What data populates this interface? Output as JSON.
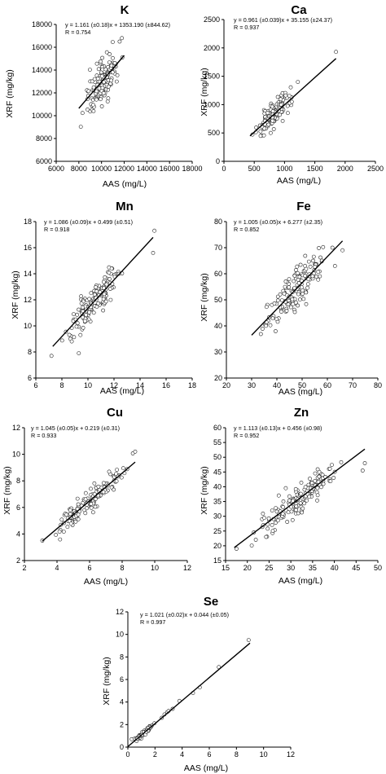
{
  "chart_data": [
    {
      "type": "scatter",
      "title": "K",
      "xlabel": "AAS (mg/L)",
      "ylabel": "XRF (mg/kg)",
      "xlim": [
        6000,
        18000
      ],
      "ylim": [
        6000,
        18000
      ],
      "xticks": [
        "6000",
        "8000",
        "10000",
        "12000",
        "14000",
        "16000",
        "18000"
      ],
      "yticks": [
        "6000",
        "8000",
        "10000",
        "12000",
        "14000",
        "16000",
        "18000"
      ],
      "equation": "y = 1.161 (±0.18)x + 1353.190 (±844.62)",
      "r_text": "R = 0.754",
      "fit": {
        "slope": 1.161,
        "intercept": 1353.19,
        "x_range": [
          8000,
          12000
        ]
      },
      "points": {
        "count": 150,
        "x_range": [
          8000,
          12000
        ],
        "residual_sd": 950,
        "seed": 11
      },
      "outliers": [
        [
          11800,
          16800
        ],
        [
          11600,
          16500
        ],
        [
          9300,
          10400
        ]
      ],
      "grid": false,
      "legend": "none"
    },
    {
      "type": "scatter",
      "title": "Ca",
      "xlabel": "AAS (mg/L)",
      "ylabel": "XRF (mg/kg)",
      "xlim": [
        0,
        2500
      ],
      "ylim": [
        0,
        2500
      ],
      "xticks": [
        "0",
        "500",
        "1000",
        "1500",
        "2000",
        "2500"
      ],
      "yticks": [
        "0",
        "500",
        "1000",
        "1500",
        "2000",
        "2500"
      ],
      "equation": "y = 0.961 (±0.039)x + 35.155 (±24.37)",
      "r_text": "R = 0.937",
      "fit": {
        "slope": 0.961,
        "intercept": 35.155,
        "x_range": [
          430,
          1850
        ]
      },
      "points": {
        "count": 150,
        "x_range": [
          430,
          1220
        ],
        "residual_sd": 95,
        "seed": 23
      },
      "outliers": [
        [
          1850,
          1930
        ],
        [
          1220,
          1400
        ]
      ],
      "grid": false,
      "legend": "none"
    },
    {
      "type": "scatter",
      "title": "Mn",
      "xlabel": "AAS (mg/L)",
      "ylabel": "XRF (mg/kg)",
      "xlim": [
        6,
        18
      ],
      "ylim": [
        6,
        18
      ],
      "xticks": [
        "6",
        "8",
        "10",
        "12",
        "14",
        "16",
        "18"
      ],
      "yticks": [
        "6",
        "8",
        "10",
        "12",
        "14",
        "16",
        "18"
      ],
      "equation": "y = 1.086 (±0.09)x + 0.499 (±0.51)",
      "r_text": "R = 0.918",
      "fit": {
        "slope": 1.086,
        "intercept": 0.499,
        "x_range": [
          7.3,
          15
        ]
      },
      "points": {
        "count": 150,
        "x_range": [
          7.5,
          13.2
        ],
        "residual_sd": 0.6,
        "seed": 37
      },
      "outliers": [
        [
          15.1,
          17.3
        ],
        [
          15,
          15.6
        ],
        [
          7.2,
          7.7
        ],
        [
          9.3,
          7.9
        ]
      ],
      "grid": false,
      "legend": "none"
    },
    {
      "type": "scatter",
      "title": "Fe",
      "xlabel": "AAS (mg/L)",
      "ylabel": "XRF (mg/kg)",
      "xlim": [
        20,
        80
      ],
      "ylim": [
        20,
        80
      ],
      "xticks": [
        "20",
        "30",
        "40",
        "50",
        "60",
        "70",
        "80"
      ],
      "yticks": [
        "20",
        "30",
        "40",
        "50",
        "60",
        "70",
        "80"
      ],
      "equation": "y = 1.005 (±0.05)x + 6.277 (±2.35)",
      "r_text": "R = 0.852",
      "fit": {
        "slope": 1.005,
        "intercept": 6.277,
        "x_range": [
          30,
          66
        ]
      },
      "points": {
        "count": 150,
        "x_range": [
          30,
          65
        ],
        "residual_sd": 4.2,
        "seed": 53
      },
      "outliers": [
        [
          62,
          70
        ],
        [
          66,
          69
        ],
        [
          63,
          63
        ]
      ],
      "grid": false,
      "legend": "none"
    },
    {
      "type": "scatter",
      "title": "Cu",
      "xlabel": "AAS (mg/L)",
      "ylabel": "XRF (mg/kg)",
      "xlim": [
        2,
        12
      ],
      "ylim": [
        2,
        12
      ],
      "xticks": [
        "2",
        "4",
        "6",
        "8",
        "10",
        "12"
      ],
      "yticks": [
        "2",
        "4",
        "6",
        "8",
        "10",
        "12"
      ],
      "equation": "y = 1.045 (±0.05)x + 0.219 (±0.31)",
      "r_text": "R = 0.933",
      "fit": {
        "slope": 1.045,
        "intercept": 0.219,
        "x_range": [
          3.1,
          8.8
        ]
      },
      "points": {
        "count": 150,
        "x_range": [
          3.3,
          8.8
        ],
        "residual_sd": 0.45,
        "seed": 71
      },
      "outliers": [
        [
          8.8,
          10.2
        ],
        [
          3.1,
          3.5
        ]
      ],
      "grid": false,
      "legend": "none"
    },
    {
      "type": "scatter",
      "title": "Zn",
      "xlabel": "AAS (mg/L)",
      "ylabel": "XRF (mg/kg)",
      "xlim": [
        15,
        50
      ],
      "ylim": [
        15,
        60
      ],
      "xticks": [
        "15",
        "20",
        "25",
        "30",
        "35",
        "40",
        "45",
        "50"
      ],
      "yticks": [
        "15",
        "20",
        "25",
        "30",
        "35",
        "40",
        "45",
        "50",
        "55",
        "60"
      ],
      "equation": "y = 1.113 (±0.13)x + 0.456 (±0.98)",
      "r_text": "R = 0.952",
      "fit": {
        "slope": 1.113,
        "intercept": 0.456,
        "x_range": [
          17,
          47
        ]
      },
      "points": {
        "count": 150,
        "x_range": [
          18,
          46
        ],
        "residual_sd": 2.3,
        "seed": 89
      },
      "outliers": [
        [
          17.5,
          19
        ],
        [
          46.5,
          45.5
        ],
        [
          47,
          48
        ]
      ],
      "grid": false,
      "legend": "none"
    },
    {
      "type": "scatter",
      "title": "Se",
      "xlabel": "AAS (mg/L)",
      "ylabel": "XRF (mg/kg)",
      "xlim": [
        0,
        12
      ],
      "ylim": [
        0,
        12
      ],
      "xticks": [
        "0",
        "2",
        "4",
        "6",
        "8",
        "10",
        "12"
      ],
      "yticks": [
        "0",
        "2",
        "4",
        "6",
        "8",
        "10",
        "12"
      ],
      "equation": "y = 1.021 (±0.02)x + 0.044 (±0.05)",
      "r_text": "R = 0.997",
      "fit": {
        "slope": 1.021,
        "intercept": 0.044,
        "x_range": [
          0,
          9
        ]
      },
      "points": {
        "count": 70,
        "x_range": [
          0.1,
          2.2
        ],
        "residual_sd": 0.12,
        "seed": 97
      },
      "outliers": [
        [
          2.5,
          2.6
        ],
        [
          2.9,
          3.1
        ],
        [
          3.3,
          3.4
        ],
        [
          3.8,
          4.1
        ],
        [
          4.8,
          4.8
        ],
        [
          5.3,
          5.3
        ],
        [
          6.7,
          7.1
        ],
        [
          8.9,
          9.5
        ],
        [
          3.0,
          3.2
        ],
        [
          2.7,
          2.9
        ]
      ],
      "grid": false,
      "legend": "none"
    }
  ]
}
